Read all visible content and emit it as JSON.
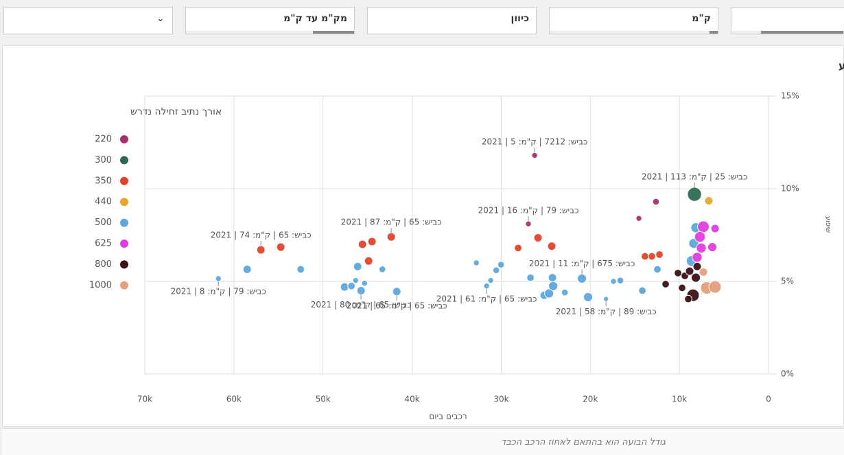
{
  "filters": [
    "מק\"מ עד ק\"מ",
    "כיוון",
    "ק\"מ"
  ],
  "footnote": "גודל הבועה הוא בהתאם לאחוז הרכב הכבד",
  "chart_data": {
    "type": "scatter",
    "title": "כמות רכבים ביום אל מול השיפוע",
    "x_label": "רכבים ביום",
    "y_label": "שיפוע",
    "legend_title": "אורך נתיב זחילה נדרש",
    "legend": "left",
    "grid": true,
    "xlim": [
      70000,
      0
    ],
    "xticks": [
      {
        "value": 70000,
        "label": "70k"
      },
      {
        "value": 60000,
        "label": "60k"
      },
      {
        "value": 50000,
        "label": "50k"
      },
      {
        "value": 40000,
        "label": "40k"
      },
      {
        "value": 30000,
        "label": "30k"
      },
      {
        "value": 20000,
        "label": "20k"
      },
      {
        "value": 10000,
        "label": "10k"
      },
      0
    ],
    "ylim": [
      0,
      15
    ],
    "yticks": [
      {
        "value": 0,
        "label": "0%"
      },
      {
        "value": 5,
        "label": "5%"
      },
      {
        "value": 10,
        "label": "10%"
      },
      {
        "value": 15,
        "label": "15%"
      }
    ],
    "series": [
      {
        "name": "220",
        "color": "#a8306f",
        "x": [
          26250,
          26950,
          12630,
          14550
        ],
        "values": [
          11.8,
          8.1,
          9.3,
          8.4
        ],
        "sizes": [
          2,
          2,
          3,
          2
        ],
        "labels": [
          "כביש: 7212 | ק\"מ: 5 | 2021",
          "כביש: 79 | ק\"מ: 16 | 2021",
          null,
          null
        ]
      },
      {
        "name": "300",
        "color": "#2e6b50",
        "x": [
          8310
        ],
        "values": [
          9.7
        ],
        "sizes": [
          12
        ],
        "labels": [
          "כביש: 25 | ק\"מ: 113 | 2021"
        ]
      },
      {
        "name": "350",
        "color": "#e2422a",
        "x": [
          56970,
          54740,
          45570,
          44500,
          42340,
          44880,
          28100,
          25870,
          24330,
          13860,
          13090,
          12240
        ],
        "values": [
          6.7,
          6.85,
          7.0,
          7.15,
          7.4,
          6.1,
          6.8,
          7.35,
          6.9,
          6.35,
          6.35,
          6.45
        ],
        "sizes": [
          5,
          5,
          5,
          5,
          5,
          5,
          4,
          5,
          5,
          4,
          4,
          4
        ],
        "labels": [
          "כביש: 65 | ק\"מ: 74 | 2021",
          null,
          null,
          null,
          "כביש: 65 | ק\"מ: 87 | 2021",
          null,
          null,
          null,
          null,
          null,
          null,
          null
        ]
      },
      {
        "name": "440",
        "color": "#e9a82b",
        "x": [
          6700
        ],
        "values": [
          9.35
        ],
        "sizes": [
          5
        ],
        "labels": [
          null
        ]
      },
      {
        "name": "500",
        "color": "#5ea7dc",
        "x": [
          61740,
          58510,
          52500,
          47580,
          46800,
          46340,
          46110,
          45730,
          45340,
          43340,
          41720,
          32790,
          31640,
          31180,
          30560,
          30020,
          26710,
          25170,
          24630,
          24250,
          24170,
          22860,
          20940,
          20250,
          18240,
          17400,
          16630,
          14160,
          12470,
          8160,
          8390,
          8620
        ],
        "values": [
          5.15,
          5.65,
          5.65,
          4.7,
          4.75,
          5.05,
          5.8,
          4.5,
          4.9,
          5.65,
          4.45,
          6.0,
          4.75,
          5.05,
          5.6,
          5.9,
          5.2,
          4.25,
          4.35,
          5.2,
          4.75,
          4.4,
          5.15,
          4.15,
          4.05,
          5.0,
          5.05,
          4.5,
          5.65,
          7.9,
          7.05,
          6.1
        ],
        "sizes": [
          2,
          5,
          4,
          5,
          4,
          2,
          5,
          5,
          2,
          3,
          5,
          2,
          2,
          2,
          3,
          3,
          4,
          5,
          6,
          5,
          6,
          3,
          6,
          6,
          1,
          2,
          3,
          4,
          4,
          7,
          7,
          8
        ],
        "labels": [
          "כביש: 79 | ק\"מ: 8 | 2021",
          null,
          null,
          null,
          null,
          null,
          null,
          "כביש: 65 | ק\"מ: 80 | 2021",
          null,
          null,
          "כביש: 65 | ק\"מ: 65 | 2021",
          null,
          "כביש: 65 | ק\"מ: 61 | 2021",
          null,
          null,
          null,
          null,
          null,
          null,
          null,
          null,
          null,
          "כביש: 675 | ק\"מ: 11 | 2021",
          null,
          "כביש: 89 | ק\"מ: 58 | 2021",
          null,
          null,
          null,
          null,
          null,
          null,
          null
        ]
      },
      {
        "name": "625",
        "color": "#e03de0",
        "x": [
          7310,
          6000,
          7700,
          6310,
          7540,
          8010
        ],
        "values": [
          7.95,
          7.85,
          7.4,
          6.85,
          6.8,
          6.3
        ],
        "sizes": [
          9,
          5,
          8,
          6,
          7,
          7
        ],
        "labels": [
          null,
          null,
          null,
          null,
          null,
          null
        ]
      },
      {
        "name": "800",
        "color": "#3a1216",
        "x": [
          11550,
          10160,
          9390,
          8850,
          9700,
          8160,
          8470,
          9010,
          8010
        ],
        "values": [
          4.85,
          5.45,
          5.3,
          5.55,
          4.65,
          5.2,
          4.25,
          4.05,
          5.8
        ],
        "sizes": [
          4,
          4,
          4,
          5,
          4,
          6,
          10,
          4,
          5
        ],
        "labels": [
          null,
          null,
          null,
          null,
          null,
          null,
          null,
          null,
          null
        ]
      },
      {
        "name": "1000",
        "color": "#e4a07e",
        "x": [
          7310,
          6930,
          6000
        ],
        "values": [
          5.5,
          4.65,
          4.7
        ],
        "sizes": [
          5,
          10,
          10
        ],
        "labels": [
          null,
          null,
          null
        ]
      }
    ]
  }
}
